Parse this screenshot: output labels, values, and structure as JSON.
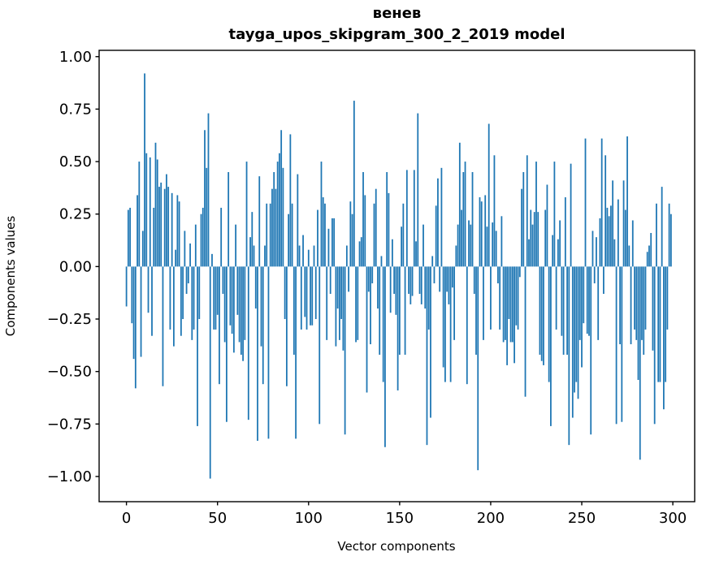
{
  "header": {
    "title_line1": "венев",
    "title_line2": "tayga_upos_skipgram_300_2_2019 model"
  },
  "axes": {
    "xlabel": "Vector components",
    "ylabel": "Components values"
  },
  "chart_data": {
    "type": "bar",
    "title": "венев\ntayga_upos_skipgram_300_2_2019 model",
    "xlabel": "Vector components",
    "ylabel": "Components values",
    "legend": false,
    "grid": false,
    "bar_color": "#1f77b4",
    "bar_width": 0.8,
    "n_components": 300,
    "x_start": 0,
    "xlim": [
      -15,
      312
    ],
    "ylim": [
      -1.12,
      1.03
    ],
    "x_ticks": [
      0,
      50,
      100,
      150,
      200,
      250,
      300
    ],
    "y_ticks": [
      1.0,
      0.75,
      0.5,
      0.25,
      0.0,
      -0.25,
      -0.5,
      -0.75,
      -1.0
    ],
    "values": [
      -0.19,
      0.27,
      0.28,
      -0.27,
      -0.44,
      -0.58,
      0.34,
      0.5,
      -0.43,
      0.17,
      0.92,
      0.54,
      -0.22,
      0.52,
      -0.33,
      0.28,
      0.59,
      0.51,
      0.38,
      0.4,
      -0.57,
      0.37,
      0.44,
      0.38,
      -0.3,
      0.35,
      -0.38,
      0.08,
      0.34,
      0.31,
      -0.33,
      -0.25,
      0.17,
      -0.13,
      -0.08,
      0.11,
      -0.35,
      -0.3,
      0.2,
      -0.76,
      -0.25,
      0.25,
      0.28,
      0.65,
      0.47,
      0.73,
      -1.01,
      0.06,
      -0.3,
      -0.3,
      -0.23,
      -0.56,
      0.28,
      -0.13,
      -0.36,
      -0.74,
      0.45,
      -0.28,
      -0.32,
      -0.41,
      0.2,
      -0.23,
      -0.36,
      -0.42,
      -0.45,
      -0.35,
      0.5,
      -0.73,
      0.14,
      0.26,
      0.1,
      -0.2,
      -0.83,
      0.43,
      -0.38,
      -0.56,
      0.1,
      0.3,
      -0.82,
      0.3,
      0.37,
      0.45,
      0.37,
      0.5,
      0.54,
      0.65,
      0.47,
      -0.25,
      -0.57,
      0.25,
      0.63,
      0.3,
      -0.42,
      -0.82,
      0.44,
      0.1,
      -0.3,
      0.15,
      -0.24,
      -0.3,
      0.08,
      -0.28,
      -0.28,
      0.1,
      -0.25,
      0.27,
      -0.75,
      0.5,
      0.33,
      0.3,
      -0.35,
      0.18,
      -0.13,
      0.23,
      0.23,
      -0.38,
      -0.2,
      -0.35,
      -0.25,
      -0.4,
      -0.8,
      0.1,
      -0.12,
      0.31,
      0.25,
      0.79,
      -0.36,
      -0.35,
      0.12,
      0.14,
      0.45,
      0.34,
      -0.6,
      -0.12,
      -0.37,
      -0.08,
      0.3,
      0.37,
      -0.2,
      -0.42,
      0.05,
      -0.55,
      -0.86,
      0.45,
      0.35,
      -0.22,
      0.13,
      -0.13,
      -0.23,
      -0.59,
      -0.42,
      0.19,
      0.3,
      -0.42,
      0.46,
      -0.13,
      -0.18,
      -0.14,
      0.46,
      0.12,
      0.73,
      -0.13,
      -0.18,
      0.2,
      -0.2,
      -0.85,
      -0.3,
      -0.72,
      0.05,
      -0.08,
      0.29,
      0.42,
      -0.12,
      0.47,
      -0.48,
      -0.55,
      -0.12,
      -0.18,
      -0.55,
      -0.1,
      -0.35,
      0.1,
      0.2,
      0.59,
      0.27,
      0.45,
      0.5,
      -0.56,
      0.22,
      0.2,
      0.45,
      -0.13,
      -0.42,
      -0.97,
      0.33,
      0.31,
      -0.35,
      0.34,
      0.19,
      0.68,
      -0.3,
      0.21,
      0.53,
      0.17,
      -0.08,
      -0.3,
      0.24,
      -0.36,
      -0.35,
      -0.47,
      -0.25,
      -0.36,
      -0.36,
      -0.46,
      -0.28,
      -0.3,
      -0.05,
      0.37,
      0.45,
      -0.62,
      0.53,
      0.13,
      0.27,
      0.2,
      0.26,
      0.5,
      0.26,
      -0.42,
      -0.45,
      -0.47,
      0.27,
      0.39,
      -0.55,
      -0.76,
      0.15,
      0.5,
      -0.3,
      0.13,
      0.22,
      -0.33,
      -0.42,
      0.33,
      -0.42,
      -0.85,
      0.49,
      -0.72,
      -0.6,
      -0.55,
      -0.63,
      -0.35,
      -0.48,
      -0.27,
      0.61,
      -0.32,
      -0.33,
      -0.8,
      0.17,
      -0.08,
      0.14,
      -0.35,
      0.23,
      0.61,
      -0.13,
      0.53,
      0.28,
      0.24,
      0.29,
      0.41,
      0.13,
      -0.75,
      0.32,
      -0.37,
      -0.74,
      0.41,
      0.27,
      0.62,
      0.1,
      -0.37,
      0.22,
      -0.3,
      -0.35,
      -0.54,
      -0.92,
      -0.35,
      -0.42,
      -0.3,
      0.07,
      0.1,
      0.16,
      -0.4,
      -0.75,
      0.3,
      -0.55,
      -0.55,
      0.38,
      -0.68,
      -0.55,
      -0.3,
      0.3,
      0.25
    ]
  }
}
